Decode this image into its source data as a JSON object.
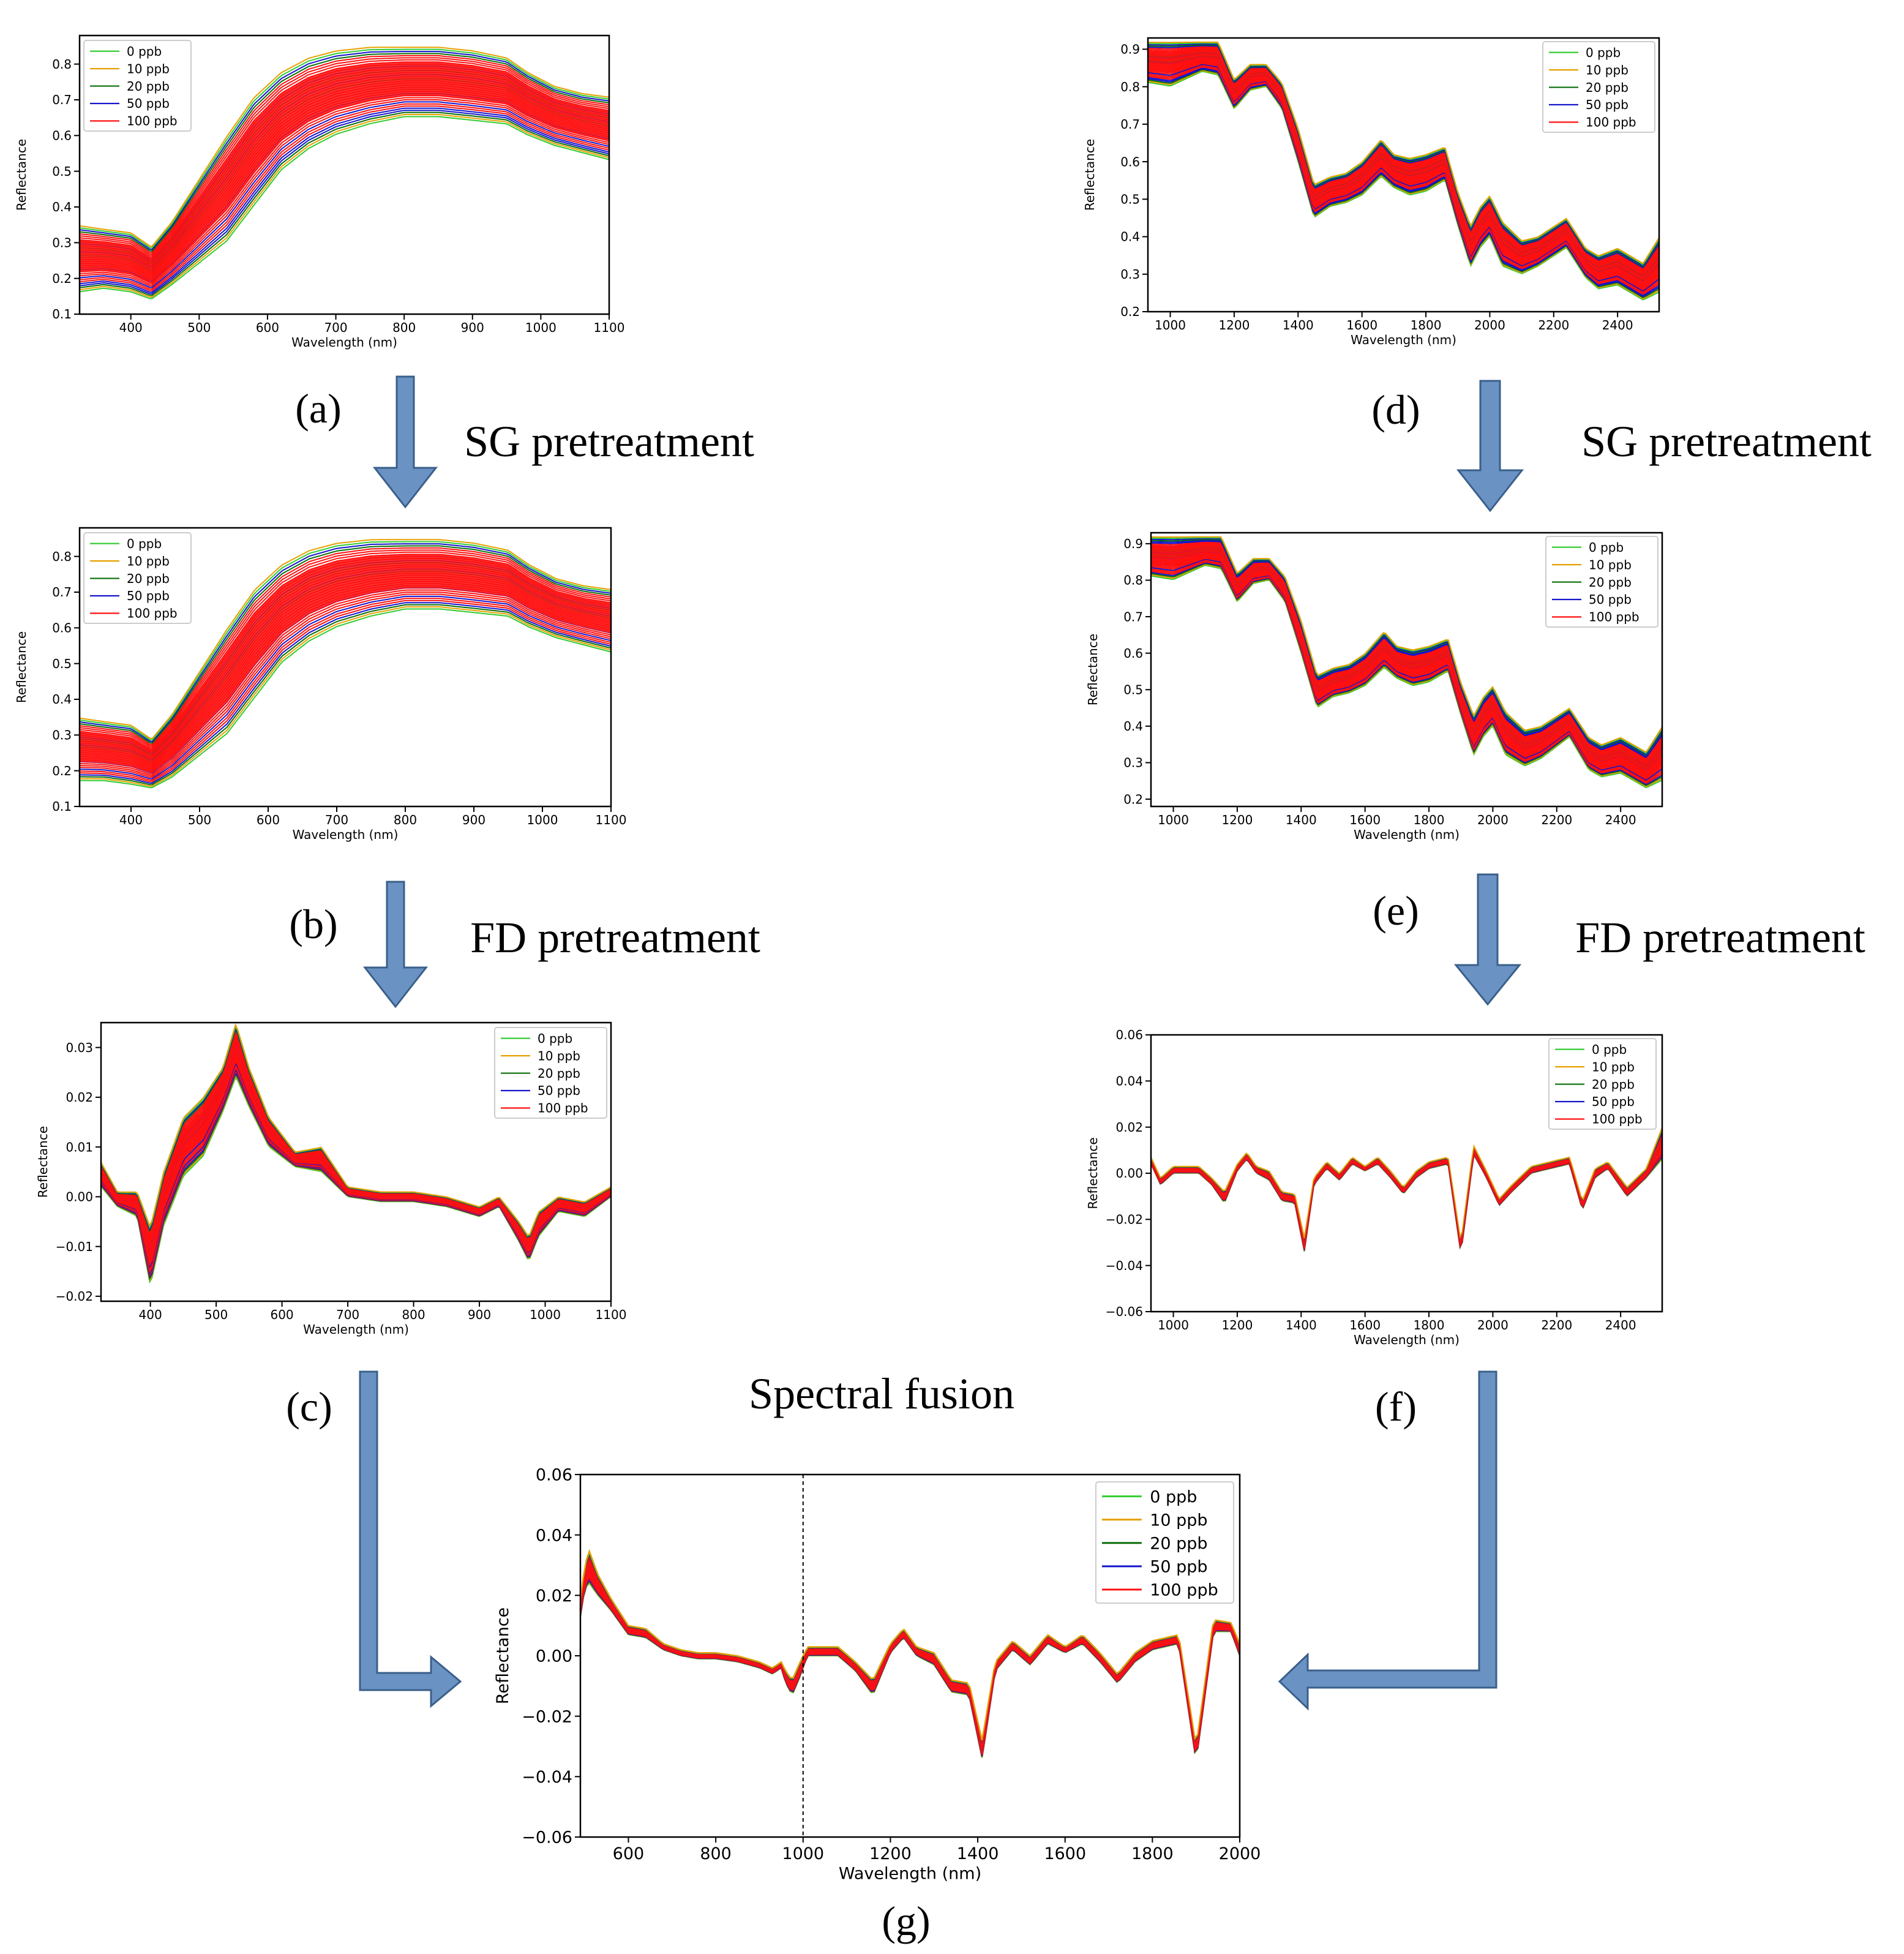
{
  "series_legend": [
    {
      "name": "0 ppb",
      "color": "#33cc33"
    },
    {
      "name": "10 ppb",
      "color": "#e6a000"
    },
    {
      "name": "20 ppb",
      "color": "#0a6e0a"
    },
    {
      "name": "50 ppb",
      "color": "#1515cc"
    },
    {
      "name": "100 ppb",
      "color": "#ff1010"
    }
  ],
  "captions": {
    "a": "(a)",
    "b": "(b)",
    "c": "(c)",
    "d": "(d)",
    "e": "(e)",
    "f": "(f)",
    "g": "(g)"
  },
  "steps": {
    "sg_left": "SG pretreatment",
    "fd_left": "FD pretreatment",
    "sg_right": "SG pretreatment",
    "fd_right": "FD pretreatment",
    "fusion": "Spectral fusion"
  },
  "arrow_color": "#6a93c4",
  "chart_data": [
    {
      "id": "a",
      "type": "line",
      "title": "",
      "xlabel": "Wavelength (nm)",
      "ylabel": "Reflectance",
      "xlim": [
        325,
        1100
      ],
      "ylim": [
        0.1,
        0.88
      ],
      "xticks": [
        400,
        500,
        600,
        700,
        800,
        900,
        1000,
        1100
      ],
      "yticks": [
        0.1,
        0.2,
        0.3,
        0.4,
        0.5,
        0.6,
        0.7,
        0.8
      ],
      "legend_position": "top-left",
      "series": [
        {
          "name": "band",
          "x": [
            325,
            360,
            400,
            430,
            460,
            500,
            540,
            580,
            620,
            660,
            700,
            750,
            800,
            850,
            900,
            950,
            980,
            1020,
            1060,
            1100
          ],
          "y_low": [
            0.16,
            0.17,
            0.16,
            0.14,
            0.18,
            0.24,
            0.3,
            0.4,
            0.5,
            0.56,
            0.6,
            0.63,
            0.65,
            0.65,
            0.64,
            0.63,
            0.6,
            0.57,
            0.55,
            0.53
          ],
          "y_high": [
            0.35,
            0.34,
            0.33,
            0.29,
            0.36,
            0.48,
            0.6,
            0.71,
            0.78,
            0.82,
            0.84,
            0.85,
            0.85,
            0.85,
            0.84,
            0.82,
            0.78,
            0.74,
            0.72,
            0.71
          ]
        }
      ]
    },
    {
      "id": "b",
      "type": "line",
      "title": "",
      "xlabel": "Wavelength (nm)",
      "ylabel": "Reflectance",
      "xlim": [
        325,
        1100
      ],
      "ylim": [
        0.1,
        0.88
      ],
      "xticks": [
        400,
        500,
        600,
        700,
        800,
        900,
        1000,
        1100
      ],
      "yticks": [
        0.1,
        0.2,
        0.3,
        0.4,
        0.5,
        0.6,
        0.7,
        0.8
      ],
      "legend_position": "top-left",
      "series": [
        {
          "name": "band",
          "x": [
            325,
            360,
            400,
            430,
            460,
            500,
            540,
            580,
            620,
            660,
            700,
            750,
            800,
            850,
            900,
            950,
            980,
            1020,
            1060,
            1100
          ],
          "y_low": [
            0.17,
            0.17,
            0.16,
            0.15,
            0.18,
            0.24,
            0.3,
            0.4,
            0.5,
            0.56,
            0.6,
            0.63,
            0.65,
            0.65,
            0.64,
            0.63,
            0.6,
            0.57,
            0.55,
            0.53
          ],
          "y_high": [
            0.35,
            0.34,
            0.33,
            0.29,
            0.36,
            0.48,
            0.6,
            0.71,
            0.78,
            0.82,
            0.84,
            0.85,
            0.85,
            0.85,
            0.84,
            0.82,
            0.78,
            0.74,
            0.72,
            0.71
          ]
        }
      ]
    },
    {
      "id": "c",
      "type": "line",
      "title": "",
      "xlabel": "Wavelength (nm)",
      "ylabel": "Reflectance",
      "xlim": [
        325,
        1100
      ],
      "ylim": [
        -0.021,
        0.035
      ],
      "xticks": [
        400,
        500,
        600,
        700,
        800,
        900,
        1000,
        1100
      ],
      "yticks": [
        -0.02,
        -0.01,
        0.0,
        0.01,
        0.02,
        0.03
      ],
      "ytick_labels": [
        "−0.02",
        "−0.01",
        "0.00",
        "0.01",
        "0.02",
        "0.03"
      ],
      "legend_position": "top-right",
      "series": [
        {
          "name": "band",
          "x": [
            325,
            350,
            380,
            400,
            420,
            450,
            480,
            510,
            530,
            550,
            580,
            620,
            660,
            700,
            750,
            800,
            850,
            900,
            930,
            960,
            975,
            990,
            1020,
            1060,
            1100
          ],
          "y_low": [
            0.002,
            -0.002,
            -0.004,
            -0.018,
            -0.006,
            0.004,
            0.008,
            0.017,
            0.024,
            0.018,
            0.01,
            0.006,
            0.005,
            0.0,
            -0.001,
            -0.001,
            -0.002,
            -0.004,
            -0.002,
            -0.009,
            -0.013,
            -0.008,
            -0.003,
            -0.004,
            0.0
          ],
          "y_high": [
            0.007,
            0.001,
            0.001,
            -0.006,
            0.005,
            0.016,
            0.02,
            0.026,
            0.035,
            0.026,
            0.016,
            0.009,
            0.01,
            0.002,
            0.001,
            0.001,
            0.0,
            -0.002,
            0.0,
            -0.005,
            -0.008,
            -0.003,
            0.0,
            -0.001,
            0.002
          ]
        }
      ]
    },
    {
      "id": "d",
      "type": "line",
      "title": "",
      "xlabel": "Wavelength (nm)",
      "ylabel": "Reflectance",
      "xlim": [
        930,
        2530
      ],
      "ylim": [
        0.2,
        0.93
      ],
      "xticks": [
        1000,
        1200,
        1400,
        1600,
        1800,
        2000,
        2200,
        2400
      ],
      "yticks": [
        0.2,
        0.3,
        0.4,
        0.5,
        0.6,
        0.7,
        0.8,
        0.9
      ],
      "legend_position": "top-right",
      "series": [
        {
          "name": "band",
          "x": [
            930,
            1000,
            1100,
            1150,
            1200,
            1250,
            1300,
            1350,
            1400,
            1450,
            1500,
            1550,
            1600,
            1660,
            1700,
            1750,
            1800,
            1860,
            1900,
            1940,
            1970,
            2000,
            2040,
            2100,
            2150,
            2240,
            2300,
            2340,
            2400,
            2480,
            2530
          ],
          "y_low": [
            0.81,
            0.8,
            0.84,
            0.83,
            0.74,
            0.79,
            0.8,
            0.74,
            0.6,
            0.45,
            0.48,
            0.49,
            0.51,
            0.56,
            0.53,
            0.51,
            0.52,
            0.55,
            0.43,
            0.32,
            0.37,
            0.4,
            0.32,
            0.3,
            0.32,
            0.37,
            0.29,
            0.26,
            0.27,
            0.23,
            0.25
          ],
          "y_high": [
            0.92,
            0.92,
            0.92,
            0.92,
            0.82,
            0.86,
            0.86,
            0.81,
            0.69,
            0.54,
            0.56,
            0.57,
            0.6,
            0.66,
            0.62,
            0.61,
            0.62,
            0.64,
            0.52,
            0.43,
            0.48,
            0.51,
            0.44,
            0.39,
            0.4,
            0.45,
            0.37,
            0.35,
            0.37,
            0.33,
            0.4
          ]
        }
      ]
    },
    {
      "id": "e",
      "type": "line",
      "title": "",
      "xlabel": "Wavelength (nm)",
      "ylabel": "Reflectance",
      "xlim": [
        930,
        2530
      ],
      "ylim": [
        0.18,
        0.93
      ],
      "xticks": [
        1000,
        1200,
        1400,
        1600,
        1800,
        2000,
        2200,
        2400
      ],
      "yticks": [
        0.2,
        0.3,
        0.4,
        0.5,
        0.6,
        0.7,
        0.8,
        0.9
      ],
      "legend_position": "top-right",
      "series": [
        {
          "name": "band",
          "x": [
            930,
            1000,
            1100,
            1150,
            1200,
            1250,
            1300,
            1350,
            1400,
            1450,
            1500,
            1550,
            1600,
            1660,
            1700,
            1750,
            1800,
            1860,
            1900,
            1940,
            1970,
            2000,
            2040,
            2100,
            2150,
            2240,
            2300,
            2340,
            2400,
            2480,
            2530
          ],
          "y_low": [
            0.81,
            0.8,
            0.84,
            0.83,
            0.74,
            0.79,
            0.8,
            0.74,
            0.6,
            0.45,
            0.48,
            0.49,
            0.51,
            0.56,
            0.53,
            0.51,
            0.52,
            0.55,
            0.43,
            0.32,
            0.37,
            0.4,
            0.32,
            0.29,
            0.31,
            0.37,
            0.28,
            0.26,
            0.27,
            0.23,
            0.25
          ],
          "y_high": [
            0.92,
            0.92,
            0.92,
            0.92,
            0.82,
            0.86,
            0.86,
            0.81,
            0.69,
            0.54,
            0.56,
            0.57,
            0.6,
            0.66,
            0.62,
            0.61,
            0.62,
            0.64,
            0.52,
            0.43,
            0.48,
            0.51,
            0.44,
            0.39,
            0.4,
            0.45,
            0.37,
            0.35,
            0.37,
            0.33,
            0.4
          ]
        }
      ]
    },
    {
      "id": "f",
      "type": "line",
      "title": "",
      "xlabel": "Wavelength (nm)",
      "ylabel": "Reflectance",
      "xlim": [
        930,
        2530
      ],
      "ylim": [
        -0.06,
        0.06
      ],
      "xticks": [
        1000,
        1200,
        1400,
        1600,
        1800,
        2000,
        2200,
        2400
      ],
      "yticks": [
        -0.06,
        -0.04,
        -0.02,
        0.0,
        0.02,
        0.04,
        0.06
      ],
      "ytick_labels": [
        "−0.06",
        "−0.04",
        "−0.02",
        "0.00",
        "0.02",
        "0.04",
        "0.06"
      ],
      "legend_position": "top-right",
      "series": [
        {
          "name": "band",
          "x": [
            930,
            960,
            1000,
            1080,
            1120,
            1160,
            1200,
            1230,
            1260,
            1300,
            1340,
            1380,
            1410,
            1440,
            1480,
            1520,
            1560,
            1600,
            1640,
            1680,
            1720,
            1760,
            1800,
            1860,
            1900,
            1940,
            1980,
            2020,
            2060,
            2120,
            2180,
            2240,
            2280,
            2320,
            2360,
            2420,
            2480,
            2530
          ],
          "y_low": [
            0.004,
            -0.005,
            0.0,
            0.0,
            -0.005,
            -0.013,
            0.001,
            0.006,
            0.0,
            -0.003,
            -0.012,
            -0.013,
            -0.034,
            -0.005,
            0.002,
            -0.003,
            0.004,
            0.001,
            0.004,
            -0.002,
            -0.009,
            -0.002,
            0.002,
            0.004,
            -0.035,
            0.008,
            -0.002,
            -0.014,
            -0.008,
            0.0,
            0.002,
            0.004,
            -0.016,
            -0.002,
            0.002,
            -0.01,
            -0.002,
            0.006
          ],
          "y_high": [
            0.007,
            -0.002,
            0.003,
            0.003,
            -0.002,
            -0.008,
            0.004,
            0.009,
            0.003,
            0.001,
            -0.008,
            -0.009,
            -0.028,
            -0.002,
            0.005,
            0.0,
            0.007,
            0.003,
            0.007,
            0.001,
            -0.006,
            0.001,
            0.005,
            0.007,
            -0.03,
            0.012,
            0.001,
            -0.011,
            -0.005,
            0.003,
            0.005,
            0.007,
            -0.012,
            0.002,
            0.005,
            -0.006,
            0.002,
            0.02
          ]
        }
      ]
    },
    {
      "id": "g",
      "type": "line",
      "title": "",
      "xlabel": "Wavelength (nm)",
      "ylabel": "Reflectance",
      "xlim": [
        490,
        2000
      ],
      "ylim": [
        -0.06,
        0.06
      ],
      "xticks": [
        600,
        800,
        1000,
        1200,
        1400,
        1600,
        1800,
        2000
      ],
      "yticks": [
        -0.06,
        -0.04,
        -0.02,
        0.0,
        0.02,
        0.04,
        0.06
      ],
      "ytick_labels": [
        "−0.06",
        "−0.04",
        "−0.02",
        "0.00",
        "0.02",
        "0.04",
        "0.06"
      ],
      "divider_x": 1000,
      "legend_position": "top-right",
      "series": [
        {
          "name": "band",
          "x": [
            490,
            500,
            510,
            530,
            560,
            600,
            640,
            680,
            720,
            760,
            800,
            850,
            900,
            930,
            950,
            960,
            975,
            990,
            1000,
            1010,
            1080,
            1120,
            1160,
            1200,
            1230,
            1260,
            1300,
            1340,
            1380,
            1410,
            1440,
            1480,
            1520,
            1560,
            1600,
            1640,
            1680,
            1720,
            1760,
            1800,
            1860,
            1900,
            1940,
            1980,
            2000
          ],
          "y_low": [
            0.013,
            0.022,
            0.024,
            0.02,
            0.015,
            0.007,
            0.006,
            0.002,
            0.0,
            -0.001,
            -0.001,
            -0.002,
            -0.004,
            -0.006,
            -0.004,
            -0.009,
            -0.013,
            -0.008,
            -0.004,
            0.0,
            0.0,
            -0.005,
            -0.013,
            0.001,
            0.006,
            0.0,
            -0.003,
            -0.012,
            -0.013,
            -0.034,
            -0.005,
            0.002,
            -0.003,
            0.004,
            0.001,
            0.004,
            -0.002,
            -0.009,
            -0.002,
            0.002,
            0.004,
            -0.035,
            0.008,
            0.008,
            0.0
          ],
          "y_high": [
            0.018,
            0.03,
            0.035,
            0.027,
            0.019,
            0.01,
            0.009,
            0.004,
            0.002,
            0.001,
            0.001,
            0.0,
            -0.002,
            -0.004,
            -0.002,
            -0.005,
            -0.008,
            -0.003,
            0.0,
            0.003,
            0.003,
            -0.002,
            -0.008,
            0.004,
            0.009,
            0.003,
            0.001,
            -0.008,
            -0.009,
            -0.028,
            -0.002,
            0.005,
            0.0,
            0.007,
            0.003,
            0.007,
            0.001,
            -0.006,
            0.001,
            0.005,
            0.007,
            -0.03,
            0.012,
            0.011,
            0.004
          ]
        }
      ]
    }
  ]
}
